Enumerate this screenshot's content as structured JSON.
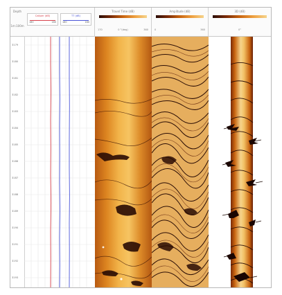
{
  "depth_track": {
    "header": "Depth",
    "unit": "1m:100m",
    "labels": [
      "3179",
      "3180",
      "3181",
      "3182",
      "3183",
      "3184",
      "3185",
      "3186",
      "3187",
      "3188",
      "3189",
      "3190",
      "3191",
      "3192",
      "3193"
    ]
  },
  "curve_track": {
    "curve_1": {
      "name": "Caliper (dB)",
      "min": "160",
      "max": "160",
      "color": "#d8424c"
    },
    "curve_2": {
      "name": "TT (dB)",
      "min": "160",
      "max": "160",
      "color": "#4a55d8"
    }
  },
  "image_tracks": [
    {
      "title": "Travel Time (dB)",
      "scale_min": "170",
      "scale_mid": "0 °(deg)",
      "scale_max": "360"
    },
    {
      "title": "Amplitude (dB)",
      "scale_min": "0",
      "scale_mid": "",
      "scale_max": "360"
    },
    {
      "title": "3D (dB)",
      "scale_min": "",
      "scale_mid": "0°",
      "scale_max": ""
    }
  ],
  "colors": {
    "colormap_dark": "#2a0c04",
    "colormap_mid": "#c86410",
    "colormap_light": "#f6d48c"
  }
}
